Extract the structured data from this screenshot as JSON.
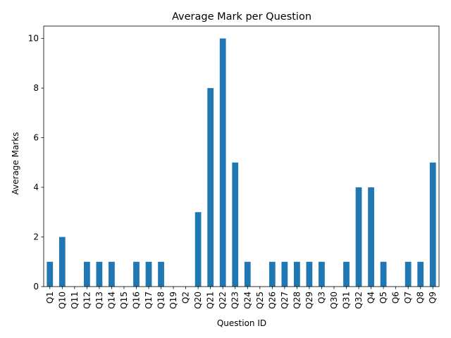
{
  "chart_data": {
    "type": "bar",
    "title": "Average Mark per Question",
    "xlabel": "Question ID",
    "ylabel": "Average Marks",
    "ylim": [
      0,
      10.5
    ],
    "yticks": [
      0,
      2,
      4,
      6,
      8,
      10
    ],
    "grid": false,
    "legend": "none",
    "bar_color": "#1f77b4",
    "categories": [
      "Q1",
      "Q10",
      "Q11",
      "Q12",
      "Q13",
      "Q14",
      "Q15",
      "Q16",
      "Q17",
      "Q18",
      "Q19",
      "Q2",
      "Q20",
      "Q21",
      "Q22",
      "Q23",
      "Q24",
      "Q25",
      "Q26",
      "Q27",
      "Q28",
      "Q29",
      "Q3",
      "Q30",
      "Q31",
      "Q32",
      "Q4",
      "Q5",
      "Q6",
      "Q7",
      "Q8",
      "Q9"
    ],
    "values": [
      1,
      2,
      0,
      1,
      1,
      1,
      0,
      1,
      1,
      1,
      0,
      0,
      3,
      8,
      10,
      5,
      1,
      0,
      1,
      1,
      1,
      1,
      1,
      0,
      1,
      4,
      4,
      1,
      0,
      1,
      1,
      5
    ]
  }
}
